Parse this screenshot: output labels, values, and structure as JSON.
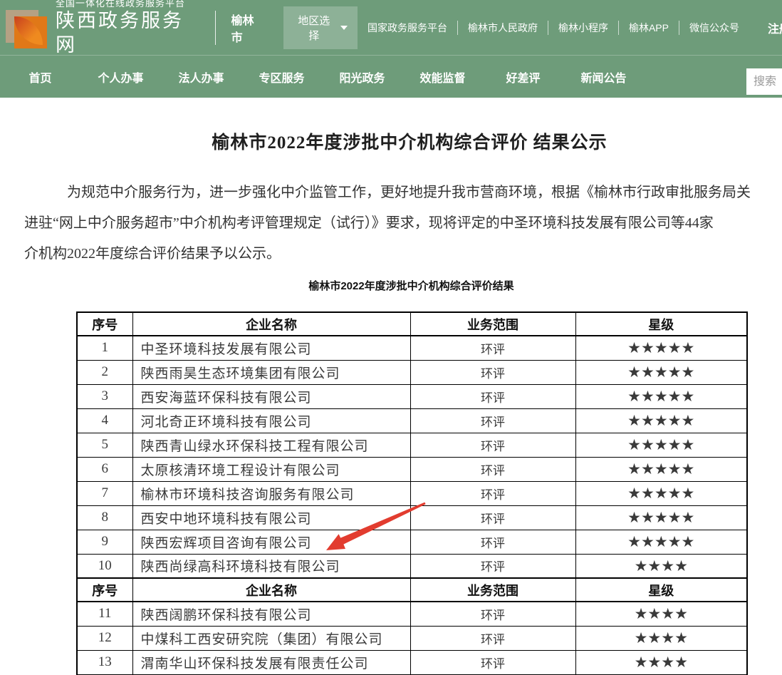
{
  "header": {
    "platform_label": "全国一体化在线政务服务平台",
    "site_name": "陕西政务服务网",
    "city": "榆林市",
    "region_selector_label": "地区选择",
    "quick_links": [
      "国家政务服务平台",
      "榆林市人民政府",
      "榆林小程序",
      "榆林APP",
      "微信公众号"
    ],
    "register_label": "注册"
  },
  "nav": {
    "items": [
      "首页",
      "个人办事",
      "法人办事",
      "专区服务",
      "阳光政务",
      "效能监督",
      "好差评",
      "新闻公告"
    ],
    "search_placeholder": "搜索"
  },
  "article": {
    "title": "榆林市2022年度涉批中介机构综合评价 结果公示",
    "paragraph_lines": [
      "为规范中介服务行为，进一步强化中介监管工作，更好地提升我市营商环境，根据《榆林市行政审批服务局关",
      "进驻“网上中介服务超市”中介机构考评管理规定（试行）》要求，现将评定的中圣环境科技发展有限公司等44家",
      "介机构2022年度综合评价结果予以公示。"
    ],
    "table_caption": "榆林市2022年度涉批中介机构综合评价结果"
  },
  "table": {
    "headers": [
      "序号",
      "企业名称",
      "业务范围",
      "星级"
    ],
    "sections": [
      {
        "rows": [
          [
            "1",
            "中圣环境科技发展有限公司",
            "环评",
            "★★★★★"
          ],
          [
            "2",
            "陕西雨昊生态环境集团有限公司",
            "环评",
            "★★★★★"
          ],
          [
            "3",
            "西安海蓝环保科技有限公司",
            "环评",
            "★★★★★"
          ],
          [
            "4",
            "河北奇正环境科技有限公司",
            "环评",
            "★★★★★"
          ],
          [
            "5",
            "陕西青山绿水环保科技工程有限公司",
            "环评",
            "★★★★★"
          ],
          [
            "6",
            "太原核清环境工程设计有限公司",
            "环评",
            "★★★★★"
          ],
          [
            "7",
            "榆林市环境科技咨询服务有限公司",
            "环评",
            "★★★★★"
          ],
          [
            "8",
            "西安中地环境科技有限公司",
            "环评",
            "★★★★★"
          ],
          [
            "9",
            "陕西宏辉项目咨询有限公司",
            "环评",
            "★★★★★"
          ],
          [
            "10",
            "陕西尚绿高科环境科技有限公司",
            "环评",
            "★★★★"
          ]
        ]
      },
      {
        "rows": [
          [
            "11",
            "陕西阔鹏环保科技有限公司",
            "环评",
            "★★★★"
          ],
          [
            "12",
            "中煤科工西安研究院（集团）有限公司",
            "环评",
            "★★★★"
          ],
          [
            "13",
            "渭南华山环保科技发展有限责任公司",
            "环评",
            "★★★★"
          ]
        ]
      }
    ]
  },
  "colors": {
    "header_green": "#6e9c7a",
    "arrow_red": "#e23c2f"
  }
}
